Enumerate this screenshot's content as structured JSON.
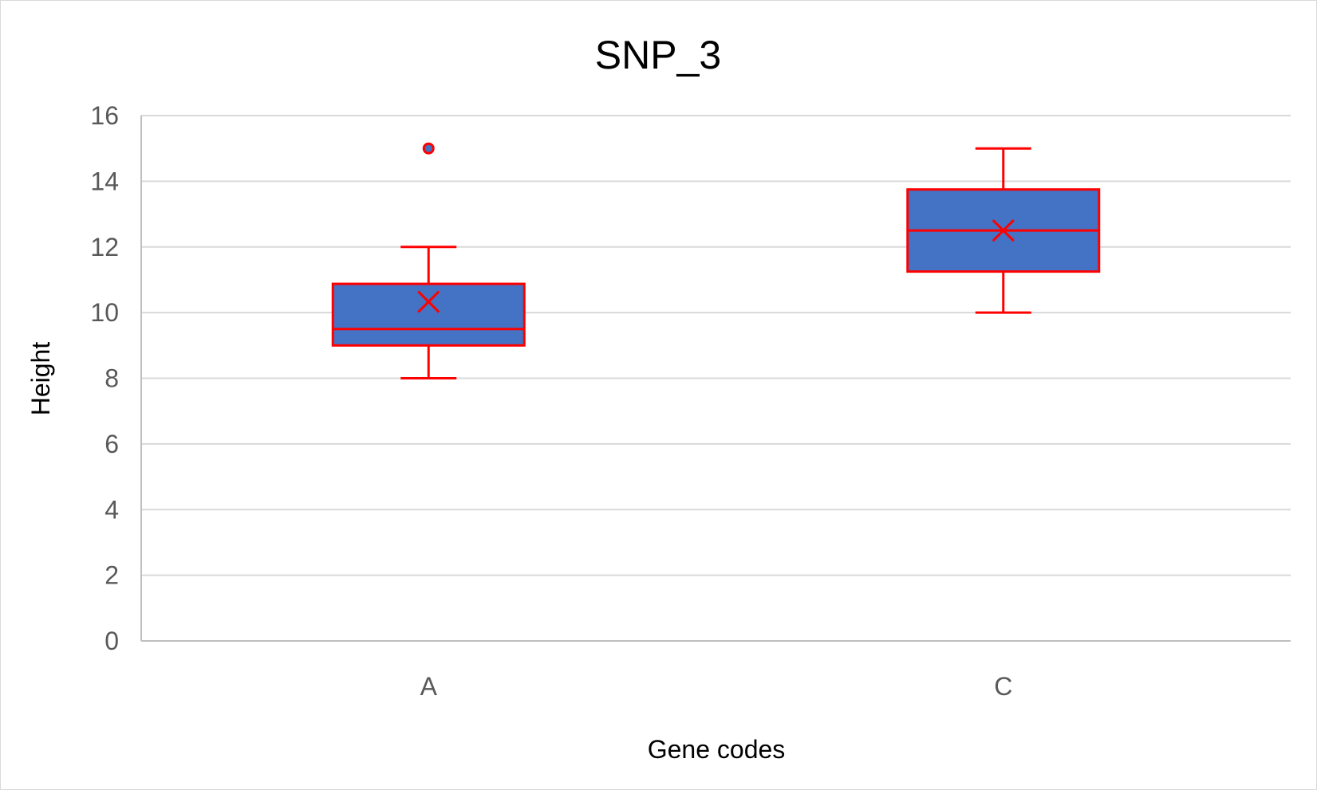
{
  "chart_data": {
    "type": "boxplot",
    "title": "SNP_3",
    "xlabel": "Gene codes",
    "ylabel": "Height",
    "ylim": [
      0,
      16
    ],
    "yticks": [
      "0",
      "2",
      "4",
      "6",
      "8",
      "10",
      "12",
      "14",
      "16"
    ],
    "categories": [
      "A",
      "C"
    ],
    "boxes": [
      {
        "category": "A",
        "min": 8,
        "q1": 9,
        "median": 9.5,
        "q3": 10.875,
        "max": 12,
        "mean": 10.33,
        "outliers": [
          15
        ]
      },
      {
        "category": "C",
        "min": 10,
        "q1": 11.25,
        "median": 12.5,
        "q3": 13.75,
        "max": 15,
        "mean": 12.5,
        "outliers": []
      }
    ],
    "grid": true,
    "colors": {
      "box_fill": "#4472c4",
      "box_line": "#ff0000",
      "grid": "#d9d9d9",
      "axis": "#bfbfbf"
    }
  }
}
